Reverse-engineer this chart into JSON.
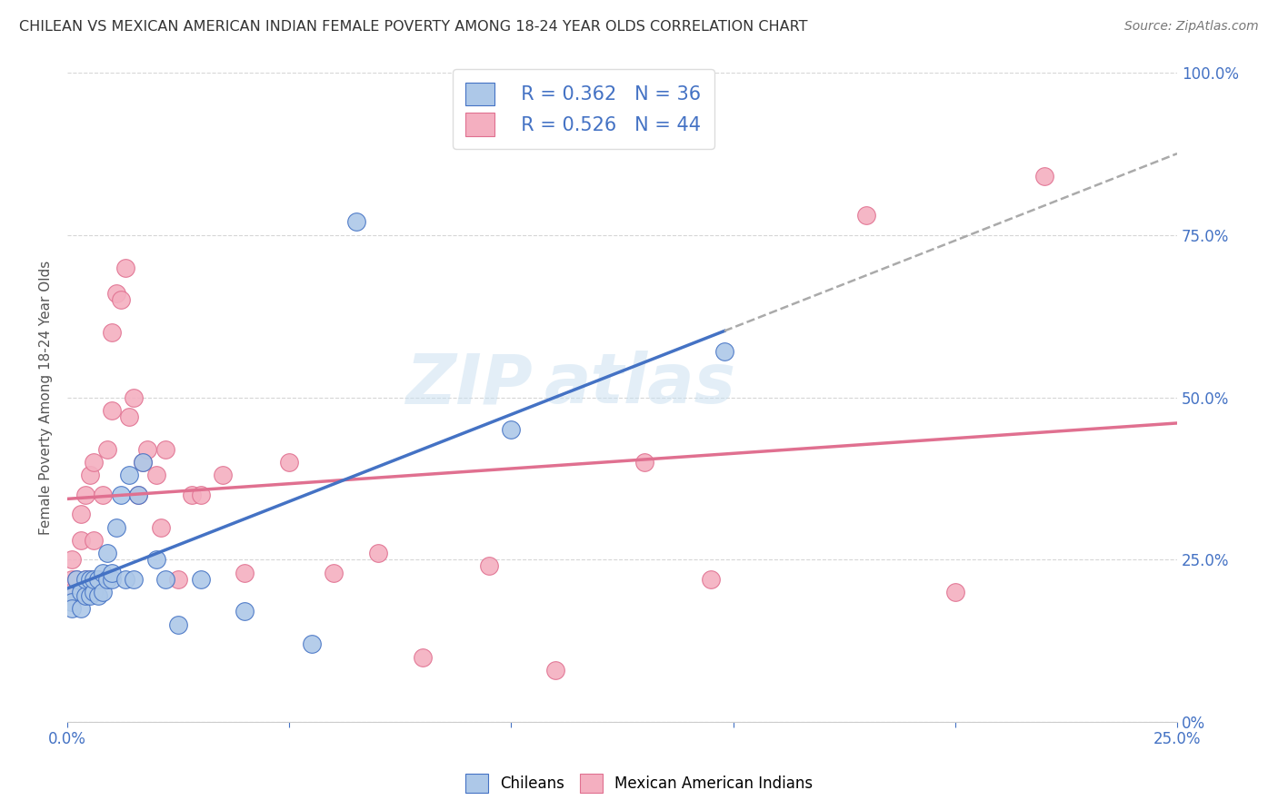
{
  "title": "CHILEAN VS MEXICAN AMERICAN INDIAN FEMALE POVERTY AMONG 18-24 YEAR OLDS CORRELATION CHART",
  "source": "Source: ZipAtlas.com",
  "ylabel": "Female Poverty Among 18-24 Year Olds",
  "xlim": [
    0,
    0.25
  ],
  "ylim": [
    0,
    1.0
  ],
  "background_color": "#ffffff",
  "title_color": "#333333",
  "axis_color": "#4472c4",
  "grid_color": "#cccccc",
  "chilean_color": "#adc8e8",
  "mexican_color": "#f4afc0",
  "chilean_line_color": "#4472c4",
  "chilean_dash_color": "#aaaaaa",
  "mexican_line_color": "#e07090",
  "legend_r_chilean": "R = 0.362",
  "legend_n_chilean": "N = 36",
  "legend_r_mexican": "R = 0.526",
  "legend_n_mexican": "N = 44",
  "legend_label_chilean": "Chileans",
  "legend_label_mexican": "Mexican American Indians",
  "watermark_zip": "ZIP",
  "watermark_atlas": "atlas",
  "chilean_x": [
    0.001,
    0.001,
    0.001,
    0.002,
    0.003,
    0.003,
    0.004,
    0.004,
    0.005,
    0.005,
    0.006,
    0.006,
    0.007,
    0.007,
    0.008,
    0.008,
    0.009,
    0.009,
    0.01,
    0.01,
    0.011,
    0.012,
    0.013,
    0.014,
    0.015,
    0.016,
    0.017,
    0.02,
    0.022,
    0.025,
    0.03,
    0.04,
    0.055,
    0.065,
    0.1,
    0.148
  ],
  "chilean_y": [
    0.195,
    0.185,
    0.175,
    0.22,
    0.175,
    0.2,
    0.195,
    0.22,
    0.22,
    0.195,
    0.2,
    0.22,
    0.195,
    0.22,
    0.2,
    0.23,
    0.22,
    0.26,
    0.22,
    0.23,
    0.3,
    0.35,
    0.22,
    0.38,
    0.22,
    0.35,
    0.4,
    0.25,
    0.22,
    0.15,
    0.22,
    0.17,
    0.12,
    0.77,
    0.45,
    0.57
  ],
  "mexican_x": [
    0.001,
    0.001,
    0.001,
    0.002,
    0.003,
    0.003,
    0.004,
    0.004,
    0.005,
    0.005,
    0.006,
    0.006,
    0.007,
    0.008,
    0.009,
    0.01,
    0.01,
    0.011,
    0.012,
    0.013,
    0.014,
    0.015,
    0.016,
    0.017,
    0.018,
    0.02,
    0.021,
    0.022,
    0.025,
    0.028,
    0.03,
    0.035,
    0.04,
    0.05,
    0.06,
    0.07,
    0.08,
    0.095,
    0.11,
    0.13,
    0.145,
    0.18,
    0.2,
    0.22
  ],
  "mexican_y": [
    0.22,
    0.2,
    0.25,
    0.22,
    0.28,
    0.32,
    0.22,
    0.35,
    0.22,
    0.38,
    0.28,
    0.4,
    0.22,
    0.35,
    0.42,
    0.6,
    0.48,
    0.66,
    0.65,
    0.7,
    0.47,
    0.5,
    0.35,
    0.4,
    0.42,
    0.38,
    0.3,
    0.42,
    0.22,
    0.35,
    0.35,
    0.38,
    0.23,
    0.4,
    0.23,
    0.26,
    0.1,
    0.24,
    0.08,
    0.4,
    0.22,
    0.78,
    0.2,
    0.84
  ]
}
